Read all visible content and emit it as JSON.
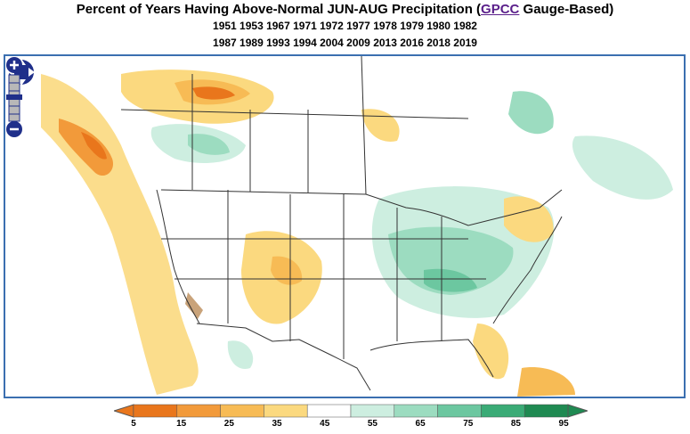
{
  "title": {
    "prefix": "Percent of Years Having Above-Normal JUN-AUG Precipitation (",
    "link_text": "GPCC",
    "suffix": " Gauge-Based)",
    "years_line1": "1951 1953 1967 1971 1972 1977 1978 1979 1980 1982",
    "years_line2": "1987 1989 1993 1994 2004 2009 2013 2016 2018 2019"
  },
  "map": {
    "controls": [
      "pan-north",
      "pan-south",
      "pan-west",
      "pan-east",
      "zoom-in",
      "zoom-out"
    ]
  },
  "legend": {
    "labels": [
      "5",
      "15",
      "25",
      "35",
      "45",
      "55",
      "65",
      "75",
      "85",
      "95"
    ],
    "colors": [
      "#e9761c",
      "#f29a3a",
      "#f7bb55",
      "#fbd97f",
      "#ffffff",
      "#cdeee0",
      "#9cdcc0",
      "#6cc7a0",
      "#3aab76",
      "#1f8a52"
    ],
    "low_arrow_color": "#e9761c",
    "high_arrow_color": "#1f8a52"
  }
}
